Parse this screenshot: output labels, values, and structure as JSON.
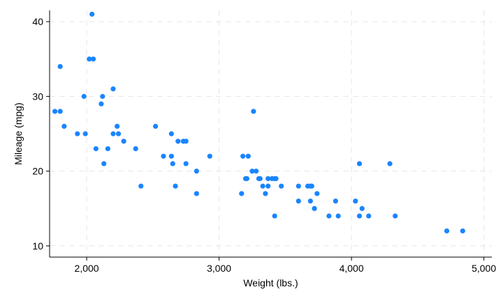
{
  "chart_data": {
    "type": "scatter",
    "xlabel": "Weight (lbs.)",
    "ylabel": "Mileage (mpg)",
    "xlim": [
      1720,
      5060
    ],
    "ylim": [
      8.5,
      41.5
    ],
    "x_ticks": [
      2000,
      3000,
      4000,
      5000
    ],
    "x_tick_labels": [
      "2,000",
      "3,000",
      "4,000",
      "5,000"
    ],
    "y_ticks": [
      10,
      20,
      30,
      40
    ],
    "y_tick_labels": [
      "10",
      "20",
      "30",
      "40"
    ],
    "grid": true,
    "marker_color": "#1a85ff",
    "points": [
      {
        "x": 1760,
        "y": 28
      },
      {
        "x": 1800,
        "y": 28
      },
      {
        "x": 1800,
        "y": 34
      },
      {
        "x": 1830,
        "y": 26
      },
      {
        "x": 1930,
        "y": 25
      },
      {
        "x": 1990,
        "y": 25
      },
      {
        "x": 1980,
        "y": 30
      },
      {
        "x": 2020,
        "y": 35
      },
      {
        "x": 2040,
        "y": 41
      },
      {
        "x": 2050,
        "y": 35
      },
      {
        "x": 2070,
        "y": 23
      },
      {
        "x": 2110,
        "y": 29
      },
      {
        "x": 2120,
        "y": 30
      },
      {
        "x": 2130,
        "y": 21
      },
      {
        "x": 2160,
        "y": 23
      },
      {
        "x": 2200,
        "y": 31
      },
      {
        "x": 2200,
        "y": 25
      },
      {
        "x": 2230,
        "y": 26
      },
      {
        "x": 2240,
        "y": 25
      },
      {
        "x": 2280,
        "y": 24
      },
      {
        "x": 2370,
        "y": 23
      },
      {
        "x": 2410,
        "y": 18
      },
      {
        "x": 2520,
        "y": 26
      },
      {
        "x": 2580,
        "y": 22
      },
      {
        "x": 2640,
        "y": 25
      },
      {
        "x": 2640,
        "y": 22
      },
      {
        "x": 2650,
        "y": 21
      },
      {
        "x": 2670,
        "y": 18
      },
      {
        "x": 2690,
        "y": 24
      },
      {
        "x": 2730,
        "y": 24
      },
      {
        "x": 2750,
        "y": 24
      },
      {
        "x": 2750,
        "y": 21
      },
      {
        "x": 2830,
        "y": 20
      },
      {
        "x": 2830,
        "y": 17
      },
      {
        "x": 2930,
        "y": 22
      },
      {
        "x": 3170,
        "y": 17
      },
      {
        "x": 3180,
        "y": 22
      },
      {
        "x": 3200,
        "y": 19
      },
      {
        "x": 3210,
        "y": 19
      },
      {
        "x": 3220,
        "y": 22
      },
      {
        "x": 3250,
        "y": 20
      },
      {
        "x": 3260,
        "y": 28
      },
      {
        "x": 3280,
        "y": 20
      },
      {
        "x": 3300,
        "y": 19
      },
      {
        "x": 3310,
        "y": 19
      },
      {
        "x": 3330,
        "y": 18
      },
      {
        "x": 3350,
        "y": 17
      },
      {
        "x": 3370,
        "y": 19
      },
      {
        "x": 3370,
        "y": 18
      },
      {
        "x": 3400,
        "y": 19
      },
      {
        "x": 3420,
        "y": 19
      },
      {
        "x": 3420,
        "y": 14
      },
      {
        "x": 3430,
        "y": 19
      },
      {
        "x": 3470,
        "y": 18
      },
      {
        "x": 3600,
        "y": 18
      },
      {
        "x": 3600,
        "y": 16
      },
      {
        "x": 3670,
        "y": 18
      },
      {
        "x": 3690,
        "y": 18
      },
      {
        "x": 3690,
        "y": 16
      },
      {
        "x": 3700,
        "y": 18
      },
      {
        "x": 3720,
        "y": 15
      },
      {
        "x": 3740,
        "y": 17
      },
      {
        "x": 3830,
        "y": 14
      },
      {
        "x": 3880,
        "y": 16
      },
      {
        "x": 3900,
        "y": 14
      },
      {
        "x": 4030,
        "y": 16
      },
      {
        "x": 4060,
        "y": 21
      },
      {
        "x": 4060,
        "y": 14
      },
      {
        "x": 4080,
        "y": 15
      },
      {
        "x": 4130,
        "y": 14
      },
      {
        "x": 4290,
        "y": 21
      },
      {
        "x": 4330,
        "y": 14
      },
      {
        "x": 4720,
        "y": 12
      },
      {
        "x": 4840,
        "y": 12
      }
    ]
  }
}
